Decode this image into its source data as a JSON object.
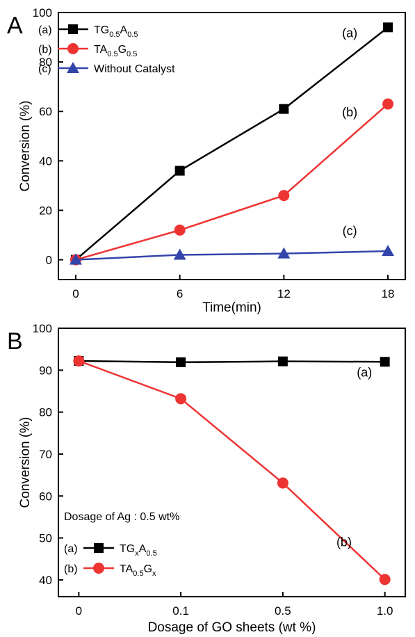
{
  "chart_data": [
    {
      "panel_label": "A",
      "type": "line",
      "xlabel": "Time(min)",
      "ylabel": "Conversion (%)",
      "x": [
        0,
        6,
        12,
        18
      ],
      "xticks": [
        "0",
        "6",
        "12",
        "18"
      ],
      "yticks": [
        "0",
        "20",
        "40",
        "60",
        "80",
        "100"
      ],
      "xlim": [
        -1,
        19
      ],
      "ylim": [
        -8,
        100
      ],
      "legend_position": "top-left",
      "series": [
        {
          "tag": "(a)",
          "name_main": "TG",
          "name_sub1": "0.5",
          "name_mid": "A",
          "name_sub2": "0.5",
          "color": "#000000",
          "marker": "square",
          "values": [
            0,
            36,
            61,
            94
          ]
        },
        {
          "tag": "(b)",
          "name_main": "TA",
          "name_sub1": "0.5",
          "name_mid": "G",
          "name_sub2": "0.5",
          "color": "#ee3333",
          "marker": "circle",
          "values": [
            0,
            12,
            26,
            63
          ]
        },
        {
          "tag": "(c)",
          "name_main": "Without Catalyst",
          "name_sub1": "",
          "name_mid": "",
          "name_sub2": "",
          "color": "#3344aa",
          "marker": "triangle",
          "values": [
            0,
            2,
            2.5,
            3.5
          ]
        }
      ],
      "curve_labels": [
        {
          "text": "(a)",
          "x": 15.8,
          "y": 90
        },
        {
          "text": "(b)",
          "x": 15.8,
          "y": 58
        },
        {
          "text": "(c)",
          "x": 15.8,
          "y": 10
        }
      ]
    },
    {
      "panel_label": "B",
      "type": "line",
      "xlabel": "Dosage of  GO sheets (wt %)",
      "ylabel": "Conversion (%)",
      "x": [
        0,
        1,
        2,
        3
      ],
      "xticks": [
        "0",
        "0.1",
        "0.5",
        "1.0"
      ],
      "yticks": [
        "40",
        "50",
        "60",
        "70",
        "80",
        "90",
        "100"
      ],
      "xlim": [
        -0.2,
        3.2
      ],
      "ylim": [
        36,
        100
      ],
      "legend_position": "bottom-left",
      "annotation": "Dosage of Ag : 0.5 wt%",
      "series": [
        {
          "tag": "(a)",
          "name_main": "TG",
          "name_sub1": "x",
          "name_mid": "A",
          "name_sub2": "0.5",
          "color": "#000000",
          "marker": "square",
          "values": [
            92.2,
            91.9,
            92.1,
            92.0
          ]
        },
        {
          "tag": "(b)",
          "name_main": "TA",
          "name_sub1": "0.5",
          "name_mid": "G",
          "name_sub2": "x",
          "color": "#ee3333",
          "marker": "circle",
          "values": [
            92.2,
            83.2,
            63.1,
            40.1
          ]
        }
      ],
      "curve_labels": [
        {
          "text": "(a)",
          "x": 2.8,
          "y": 88.5
        },
        {
          "text": "(b)",
          "x": 2.6,
          "y": 48
        }
      ]
    }
  ]
}
